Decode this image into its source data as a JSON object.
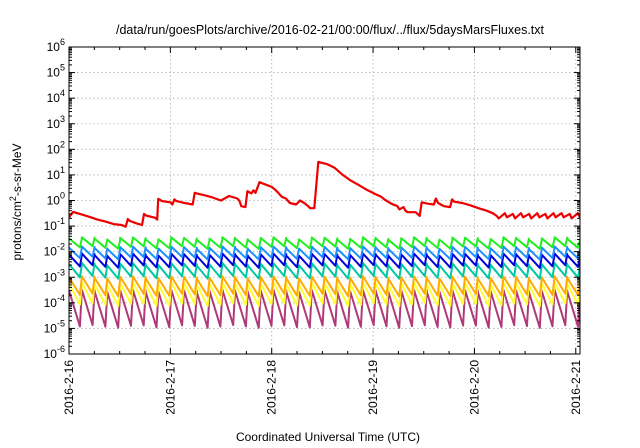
{
  "chart_data": {
    "type": "line",
    "title": "/data/run/goesPlots/archive/2016-02-21/00:00/flux/../flux/5daysMarsFluxes.txt",
    "xlabel": "Coordinated Universal Time (UTC)",
    "ylabel_parts": [
      "protons/cm",
      "2",
      "-s-sr-MeV"
    ],
    "y_scale": "log",
    "ylim": [
      1e-06,
      1000000.0
    ],
    "xlim": [
      "2016-02-16 00:00",
      "2016-02-21 01:00"
    ],
    "grid": true,
    "x_ticks": [
      "2016-2-16",
      "2016-2-17",
      "2016-2-18",
      "2016-2-19",
      "2016-2-20",
      "2016-2-21"
    ],
    "y_ticks": [
      {
        "base": "10",
        "exp": "-6"
      },
      {
        "base": "10",
        "exp": "-5"
      },
      {
        "base": "10",
        "exp": "-4"
      },
      {
        "base": "10",
        "exp": "-3"
      },
      {
        "base": "10",
        "exp": "-2"
      },
      {
        "base": "10",
        "exp": "-1"
      },
      {
        "base": "10",
        "exp": "0"
      },
      {
        "base": "10",
        "exp": "1"
      },
      {
        "base": "10",
        "exp": "2"
      },
      {
        "base": "10",
        "exp": "3"
      },
      {
        "base": "10",
        "exp": "4"
      },
      {
        "base": "10",
        "exp": "5"
      },
      {
        "base": "10",
        "exp": "6"
      }
    ],
    "series": [
      {
        "color": "#ee0000",
        "style": "trend",
        "x": [
          "2016-02-16 00:00",
          "2016-02-16 00:58",
          "2016-02-16 02:53",
          "2016-02-16 04:48",
          "2016-02-16 06:43",
          "2016-02-16 08:38",
          "2016-02-16 10:34",
          "2016-02-16 12:29",
          "2016-02-16 13:26",
          "2016-02-16 13:55",
          "2016-02-16 14:24",
          "2016-02-16 15:50",
          "2016-02-16 17:17",
          "2016-02-16 17:46",
          "2016-02-16 18:14",
          "2016-02-16 20:24",
          "2016-02-16 20:53",
          "2016-02-16 21:07",
          "2016-02-16 22:05",
          "2016-02-17 00:00",
          "2016-02-17 00:29",
          "2016-02-17 00:58",
          "2016-02-17 01:26",
          "2016-02-17 03:22",
          "2016-02-17 05:17",
          "2016-02-17 05:46",
          "2016-02-17 06:14",
          "2016-02-17 08:10",
          "2016-02-17 10:05",
          "2016-02-17 12:00",
          "2016-02-17 13:55",
          "2016-02-17 15:50",
          "2016-02-17 16:19",
          "2016-02-17 16:48",
          "2016-02-17 17:46",
          "2016-02-17 18:14",
          "2016-02-17 19:12",
          "2016-02-17 19:41",
          "2016-02-17 20:10",
          "2016-02-17 21:07",
          "2016-02-17 22:05",
          "2016-02-18 00:00",
          "2016-02-18 00:58",
          "2016-02-18 01:26",
          "2016-02-18 02:24",
          "2016-02-18 03:22",
          "2016-02-18 04:19",
          "2016-02-18 05:46",
          "2016-02-18 06:43",
          "2016-02-18 07:41",
          "2016-02-18 08:38",
          "2016-02-18 09:07",
          "2016-02-18 10:05",
          "2016-02-18 11:02",
          "2016-02-18 12:58",
          "2016-02-18 14:53",
          "2016-02-18 16:48",
          "2016-02-18 18:43",
          "2016-02-18 20:38",
          "2016-02-18 22:34",
          "2016-02-19 00:29",
          "2016-02-19 01:55",
          "2016-02-19 02:53",
          "2016-02-19 04:19",
          "2016-02-19 05:46",
          "2016-02-19 06:14",
          "2016-02-19 07:12",
          "2016-02-19 07:41",
          "2016-02-19 08:10",
          "2016-02-19 10:05",
          "2016-02-19 11:02",
          "2016-02-19 11:31",
          "2016-02-19 12:58",
          "2016-02-19 14:24",
          "2016-02-19 14:53",
          "2016-02-19 15:22",
          "2016-02-19 16:48",
          "2016-02-19 18:14",
          "2016-02-19 18:43",
          "2016-02-19 19:12",
          "2016-02-19 21:07",
          "2016-02-19 23:02",
          "2016-02-20 00:58",
          "2016-02-20 02:53",
          "2016-02-20 04:19",
          "2016-02-20 05:17",
          "2016-02-20 05:46",
          "2016-02-20 07:12",
          "2016-02-20 07:41",
          "2016-02-20 09:07",
          "2016-02-20 09:36",
          "2016-02-20 11:02",
          "2016-02-20 11:31",
          "2016-02-20 12:58",
          "2016-02-20 13:26",
          "2016-02-20 14:53",
          "2016-02-20 15:22",
          "2016-02-20 16:48",
          "2016-02-20 17:17",
          "2016-02-20 18:43",
          "2016-02-20 19:12",
          "2016-02-20 20:38",
          "2016-02-20 21:07",
          "2016-02-20 22:34",
          "2016-02-20 23:02",
          "2016-02-21 00:29",
          "2016-02-21 00:58"
        ],
        "values": [
          0.22,
          0.36,
          0.29,
          0.23,
          0.18,
          0.15,
          0.12,
          0.11,
          0.095,
          0.19,
          0.16,
          0.13,
          0.11,
          0.3,
          0.26,
          0.21,
          0.18,
          1.15,
          0.95,
          0.85,
          0.7,
          1.1,
          0.95,
          0.8,
          0.7,
          2.0,
          1.9,
          1.6,
          1.3,
          1.0,
          1.5,
          1.2,
          1.0,
          0.6,
          0.55,
          2.3,
          1.9,
          2.5,
          2.0,
          5.2,
          4.5,
          3.4,
          2.5,
          2.1,
          1.4,
          1.2,
          0.8,
          0.7,
          1.0,
          0.8,
          0.6,
          0.5,
          0.5,
          32.0,
          27.0,
          19.0,
          10.0,
          6.0,
          4.0,
          2.6,
          1.8,
          1.4,
          1.05,
          0.75,
          0.6,
          0.45,
          0.55,
          0.4,
          0.35,
          0.35,
          0.25,
          0.85,
          0.75,
          0.7,
          1.2,
          0.8,
          0.6,
          0.55,
          1.1,
          0.9,
          0.8,
          0.65,
          0.5,
          0.4,
          0.32,
          0.25,
          0.2,
          0.32,
          0.22,
          0.3,
          0.2,
          0.32,
          0.22,
          0.3,
          0.2,
          0.32,
          0.22,
          0.3,
          0.2,
          0.32,
          0.22,
          0.32,
          0.22,
          0.3,
          0.2,
          0.32,
          0.22
        ]
      },
      {
        "color": "#22ee22",
        "style": "sawtooth",
        "base": 0.022,
        "amp": 1.5,
        "cycles": 40
      },
      {
        "color": "#1e90ff",
        "style": "sawtooth",
        "base": 0.009,
        "amp": 1.6,
        "cycles": 40
      },
      {
        "color": "#0000dd",
        "style": "sawtooth",
        "base": 0.0045,
        "amp": 1.7,
        "cycles": 40
      },
      {
        "color": "#00c8a0",
        "style": "sawtooth",
        "base": 0.0018,
        "amp": 1.8,
        "cycles": 40
      },
      {
        "color": "#ffaa00",
        "style": "sawtooth",
        "base": 0.00045,
        "amp": 2.2,
        "cycles": 40
      },
      {
        "color": "#ffff33",
        "style": "sawtooth",
        "base": 0.00022,
        "amp": 2.6,
        "cycles": 40
      },
      {
        "color": "#b03a78",
        "style": "sawtooth",
        "base": 6e-05,
        "amp": 5.0,
        "cycles": 40
      }
    ]
  }
}
